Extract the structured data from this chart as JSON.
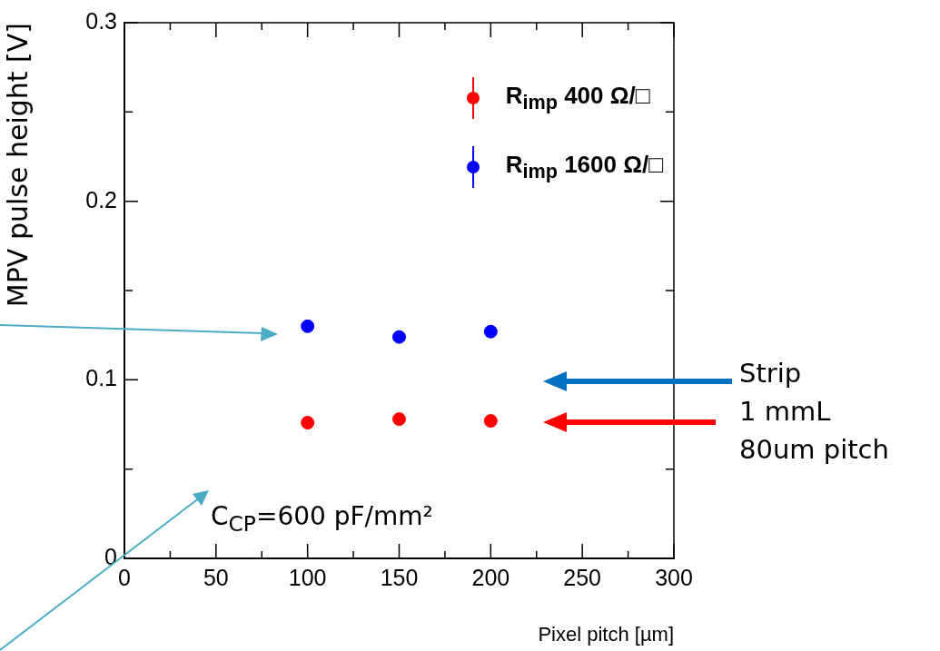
{
  "chart_data": {
    "type": "scatter",
    "xlabel": "Pixel pitch [µm]",
    "ylabel": "MPV pulse height [V]",
    "x": [
      100,
      150,
      200
    ],
    "series": [
      {
        "name": "R$_{imp}$ 400 Ω/□",
        "color": "#ff0000",
        "values": [
          0.076,
          0.078,
          0.077
        ]
      },
      {
        "name": "R$_{imp}$ 1600 Ω/□",
        "color": "#0000ff",
        "values": [
          0.13,
          0.124,
          0.127
        ]
      }
    ],
    "xlim": [
      0,
      300
    ],
    "xticks": [
      0,
      {
        "value": 25,
        "label": null
      },
      50,
      {
        "value": 75,
        "label": null
      },
      100,
      {
        "value": 125,
        "label": null
      },
      150,
      {
        "value": 175,
        "label": null
      },
      200,
      {
        "value": 225,
        "label": null
      },
      250,
      {
        "value": 275,
        "label": null
      },
      300
    ],
    "ylim": [
      0,
      0.3
    ],
    "yticks": [
      0,
      {
        "value": 0.05,
        "label": null
      },
      0.1,
      {
        "value": 0.15,
        "label": null
      },
      0.2,
      {
        "value": 0.25,
        "label": null
      },
      0.3
    ],
    "grid": false,
    "legend": "top right",
    "marker": "circle",
    "annotations": [
      "C$_{CP}$=600 pF/mm²",
      "Strip\n1 mmL\n80um pitch"
    ]
  }
}
